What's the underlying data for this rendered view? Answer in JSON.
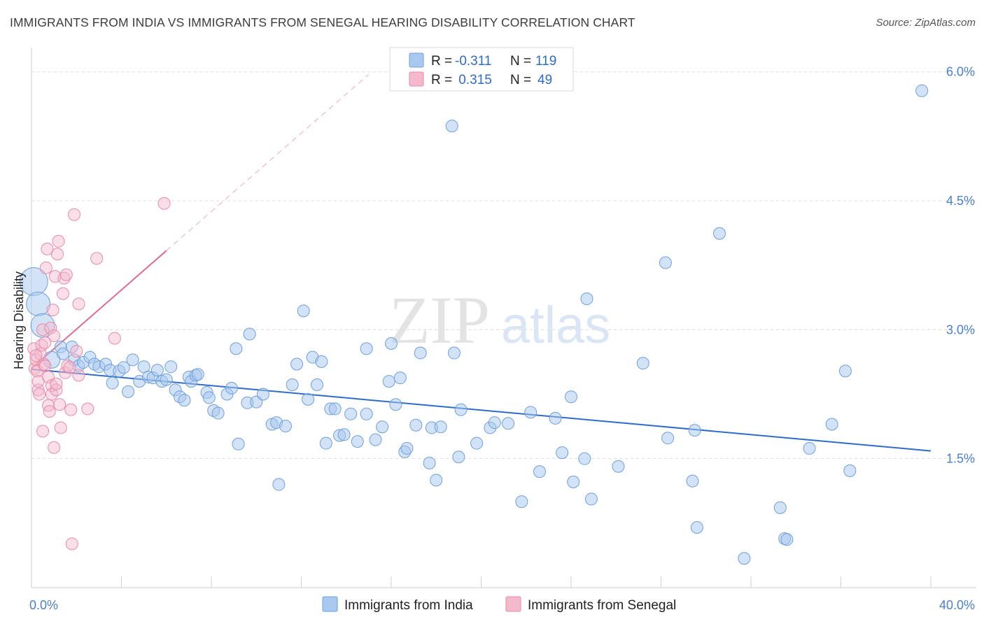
{
  "title": "IMMIGRANTS FROM INDIA VS IMMIGRANTS FROM SENEGAL HEARING DISABILITY CORRELATION CHART",
  "source": "Source: ZipAtlas.com",
  "watermark": {
    "zip": "ZIP",
    "atlas": "atlas"
  },
  "legend_top": {
    "rows": [
      {
        "r_label": "R =",
        "r_value": "-0.311",
        "n_label": "N =",
        "n_value": "119",
        "color": "#a8c8ef",
        "edge": "#6f9fd9"
      },
      {
        "r_label": "R =",
        "r_value": " 0.315",
        "n_label": "N =",
        "n_value": "49",
        "color": "#f5b8cb",
        "edge": "#e88aa8"
      }
    ]
  },
  "legend_bottom": {
    "india": "Immigrants from India",
    "senegal": "Immigrants from Senegal"
  },
  "chart_data": {
    "type": "scatter",
    "title": "IMMIGRANTS FROM INDIA VS IMMIGRANTS FROM SENEGAL HEARING DISABILITY CORRELATION CHART",
    "xlabel": "",
    "ylabel": "Hearing Disability",
    "xlim": [
      0,
      40
    ],
    "ylim": [
      0,
      6.25
    ],
    "x_tick_labels": [
      "0.0%",
      "40.0%"
    ],
    "y_ticks": [
      1.5,
      3.0,
      4.5,
      6.0
    ],
    "y_tick_labels": [
      "1.5%",
      "3.0%",
      "4.5%",
      "6.0%"
    ],
    "grid": true,
    "legend_position": "top-center",
    "colors": {
      "india": "#a8c8ef",
      "india_edge": "#6f9fd9",
      "india_line": "#2f6cc7",
      "senegal": "#f5b8cb",
      "senegal_edge": "#e88aa8",
      "senegal_line": "#e06a93"
    },
    "series": [
      {
        "name": "Immigrants from India",
        "r": -0.311,
        "n": 119,
        "trend": {
          "x": [
            0,
            40
          ],
          "y": [
            2.54,
            1.59
          ]
        },
        "points": [
          {
            "x": 0.1,
            "y": 3.56,
            "big": 3
          },
          {
            "x": 0.3,
            "y": 3.3,
            "big": 2
          },
          {
            "x": 0.5,
            "y": 3.05,
            "big": 2
          },
          {
            "x": 0.9,
            "y": 2.65,
            "big": 1
          },
          {
            "x": 1.3,
            "y": 2.8
          },
          {
            "x": 1.4,
            "y": 2.72
          },
          {
            "x": 1.8,
            "y": 2.8
          },
          {
            "x": 1.9,
            "y": 2.65
          },
          {
            "x": 2.1,
            "y": 2.58
          },
          {
            "x": 2.3,
            "y": 2.62
          },
          {
            "x": 2.6,
            "y": 2.68
          },
          {
            "x": 2.8,
            "y": 2.6
          },
          {
            "x": 3.0,
            "y": 2.57
          },
          {
            "x": 3.3,
            "y": 2.6
          },
          {
            "x": 3.5,
            "y": 2.53
          },
          {
            "x": 3.6,
            "y": 2.38
          },
          {
            "x": 3.9,
            "y": 2.52
          },
          {
            "x": 4.1,
            "y": 2.56
          },
          {
            "x": 4.3,
            "y": 2.28
          },
          {
            "x": 4.5,
            "y": 2.65
          },
          {
            "x": 4.8,
            "y": 2.4
          },
          {
            "x": 5.0,
            "y": 2.57
          },
          {
            "x": 5.2,
            "y": 2.45
          },
          {
            "x": 5.4,
            "y": 2.44
          },
          {
            "x": 5.6,
            "y": 2.53
          },
          {
            "x": 5.8,
            "y": 2.4
          },
          {
            "x": 6.0,
            "y": 2.42
          },
          {
            "x": 6.2,
            "y": 2.57
          },
          {
            "x": 6.4,
            "y": 2.3
          },
          {
            "x": 6.6,
            "y": 2.22
          },
          {
            "x": 6.8,
            "y": 2.18
          },
          {
            "x": 7.0,
            "y": 2.45
          },
          {
            "x": 7.1,
            "y": 2.4
          },
          {
            "x": 7.3,
            "y": 2.47
          },
          {
            "x": 7.4,
            "y": 2.48
          },
          {
            "x": 7.8,
            "y": 2.27
          },
          {
            "x": 7.9,
            "y": 2.21
          },
          {
            "x": 8.1,
            "y": 2.06
          },
          {
            "x": 8.3,
            "y": 2.03
          },
          {
            "x": 8.7,
            "y": 2.25
          },
          {
            "x": 8.9,
            "y": 2.32
          },
          {
            "x": 9.1,
            "y": 2.78
          },
          {
            "x": 9.2,
            "y": 1.67
          },
          {
            "x": 9.6,
            "y": 2.15
          },
          {
            "x": 9.7,
            "y": 2.95
          },
          {
            "x": 10.0,
            "y": 2.16
          },
          {
            "x": 10.3,
            "y": 2.25
          },
          {
            "x": 10.7,
            "y": 1.9
          },
          {
            "x": 10.9,
            "y": 1.92
          },
          {
            "x": 11.0,
            "y": 1.2
          },
          {
            "x": 11.3,
            "y": 1.88
          },
          {
            "x": 11.6,
            "y": 2.36
          },
          {
            "x": 11.8,
            "y": 2.6
          },
          {
            "x": 12.1,
            "y": 3.22
          },
          {
            "x": 12.3,
            "y": 2.19
          },
          {
            "x": 12.5,
            "y": 2.68
          },
          {
            "x": 12.7,
            "y": 2.36
          },
          {
            "x": 12.9,
            "y": 2.63
          },
          {
            "x": 13.1,
            "y": 1.68
          },
          {
            "x": 13.3,
            "y": 2.08
          },
          {
            "x": 13.5,
            "y": 2.08
          },
          {
            "x": 13.7,
            "y": 1.77
          },
          {
            "x": 13.9,
            "y": 1.78
          },
          {
            "x": 14.2,
            "y": 2.02
          },
          {
            "x": 14.5,
            "y": 1.7
          },
          {
            "x": 14.9,
            "y": 2.02
          },
          {
            "x": 14.9,
            "y": 2.78
          },
          {
            "x": 15.3,
            "y": 1.72
          },
          {
            "x": 15.6,
            "y": 1.87
          },
          {
            "x": 15.9,
            "y": 2.4
          },
          {
            "x": 16.0,
            "y": 2.84
          },
          {
            "x": 16.2,
            "y": 2.13
          },
          {
            "x": 16.4,
            "y": 2.44
          },
          {
            "x": 16.6,
            "y": 1.58
          },
          {
            "x": 16.7,
            "y": 1.62
          },
          {
            "x": 17.1,
            "y": 1.89
          },
          {
            "x": 17.3,
            "y": 2.73
          },
          {
            "x": 17.7,
            "y": 1.45
          },
          {
            "x": 17.8,
            "y": 1.86
          },
          {
            "x": 18.0,
            "y": 1.25
          },
          {
            "x": 18.2,
            "y": 1.87
          },
          {
            "x": 18.7,
            "y": 5.37
          },
          {
            "x": 18.8,
            "y": 2.73
          },
          {
            "x": 19.0,
            "y": 1.52
          },
          {
            "x": 19.1,
            "y": 2.07
          },
          {
            "x": 19.8,
            "y": 1.68
          },
          {
            "x": 20.4,
            "y": 1.86
          },
          {
            "x": 20.6,
            "y": 1.92
          },
          {
            "x": 21.2,
            "y": 1.91
          },
          {
            "x": 21.8,
            "y": 1.0
          },
          {
            "x": 22.2,
            "y": 2.04
          },
          {
            "x": 22.6,
            "y": 1.35
          },
          {
            "x": 23.3,
            "y": 1.97
          },
          {
            "x": 23.6,
            "y": 1.57
          },
          {
            "x": 24.0,
            "y": 2.22
          },
          {
            "x": 24.1,
            "y": 1.23
          },
          {
            "x": 24.6,
            "y": 1.5
          },
          {
            "x": 24.7,
            "y": 3.36
          },
          {
            "x": 24.9,
            "y": 1.03
          },
          {
            "x": 26.1,
            "y": 1.41
          },
          {
            "x": 27.2,
            "y": 2.61
          },
          {
            "x": 28.2,
            "y": 3.78
          },
          {
            "x": 28.3,
            "y": 1.74
          },
          {
            "x": 29.4,
            "y": 1.24
          },
          {
            "x": 29.5,
            "y": 1.83
          },
          {
            "x": 29.6,
            "y": 0.7
          },
          {
            "x": 30.6,
            "y": 4.12
          },
          {
            "x": 31.7,
            "y": 0.34
          },
          {
            "x": 33.3,
            "y": 0.93
          },
          {
            "x": 33.5,
            "y": 0.57
          },
          {
            "x": 33.6,
            "y": 0.56
          },
          {
            "x": 34.6,
            "y": 1.62
          },
          {
            "x": 35.6,
            "y": 1.9
          },
          {
            "x": 36.2,
            "y": 2.52
          },
          {
            "x": 36.4,
            "y": 1.36
          },
          {
            "x": 39.6,
            "y": 5.78
          }
        ]
      },
      {
        "name": "Immigrants from Senegal",
        "r": 0.315,
        "n": 49,
        "trend": {
          "x": [
            0,
            6.0
          ],
          "y": [
            2.55,
            3.92
          ]
        },
        "trend_extension": {
          "x": [
            6.0,
            15.0
          ],
          "y": [
            3.92,
            5.97
          ]
        },
        "points": [
          {
            "x": 0.1,
            "y": 2.78
          },
          {
            "x": 0.15,
            "y": 2.55
          },
          {
            "x": 0.2,
            "y": 2.65
          },
          {
            "x": 0.25,
            "y": 2.52
          },
          {
            "x": 0.3,
            "y": 2.3
          },
          {
            "x": 0.35,
            "y": 2.25
          },
          {
            "x": 0.4,
            "y": 2.72
          },
          {
            "x": 0.45,
            "y": 2.82
          },
          {
            "x": 0.5,
            "y": 3.0
          },
          {
            "x": 0.5,
            "y": 1.82
          },
          {
            "x": 0.55,
            "y": 2.6
          },
          {
            "x": 0.6,
            "y": 2.58
          },
          {
            "x": 0.65,
            "y": 3.72
          },
          {
            "x": 0.7,
            "y": 3.94
          },
          {
            "x": 0.75,
            "y": 2.45
          },
          {
            "x": 0.75,
            "y": 2.12
          },
          {
            "x": 0.8,
            "y": 2.05
          },
          {
            "x": 0.85,
            "y": 3.02
          },
          {
            "x": 0.9,
            "y": 2.35
          },
          {
            "x": 0.9,
            "y": 2.25
          },
          {
            "x": 0.95,
            "y": 3.23
          },
          {
            "x": 1.0,
            "y": 2.93
          },
          {
            "x": 1.0,
            "y": 1.63
          },
          {
            "x": 1.05,
            "y": 3.62
          },
          {
            "x": 1.1,
            "y": 2.3
          },
          {
            "x": 1.1,
            "y": 2.37
          },
          {
            "x": 1.15,
            "y": 3.88
          },
          {
            "x": 1.2,
            "y": 4.03
          },
          {
            "x": 1.25,
            "y": 2.13
          },
          {
            "x": 1.3,
            "y": 1.86
          },
          {
            "x": 1.4,
            "y": 3.42
          },
          {
            "x": 1.45,
            "y": 3.6
          },
          {
            "x": 1.5,
            "y": 2.5
          },
          {
            "x": 1.55,
            "y": 3.64
          },
          {
            "x": 1.6,
            "y": 2.58
          },
          {
            "x": 1.7,
            "y": 2.56
          },
          {
            "x": 1.75,
            "y": 2.07
          },
          {
            "x": 1.8,
            "y": 0.51
          },
          {
            "x": 1.9,
            "y": 4.34
          },
          {
            "x": 2.0,
            "y": 2.75
          },
          {
            "x": 2.1,
            "y": 2.47
          },
          {
            "x": 2.1,
            "y": 3.3
          },
          {
            "x": 2.5,
            "y": 2.08
          },
          {
            "x": 2.9,
            "y": 3.83
          },
          {
            "x": 3.7,
            "y": 2.9
          },
          {
            "x": 5.9,
            "y": 4.47
          },
          {
            "x": 0.2,
            "y": 2.7
          },
          {
            "x": 0.3,
            "y": 2.4
          },
          {
            "x": 0.6,
            "y": 2.85
          }
        ]
      }
    ]
  }
}
